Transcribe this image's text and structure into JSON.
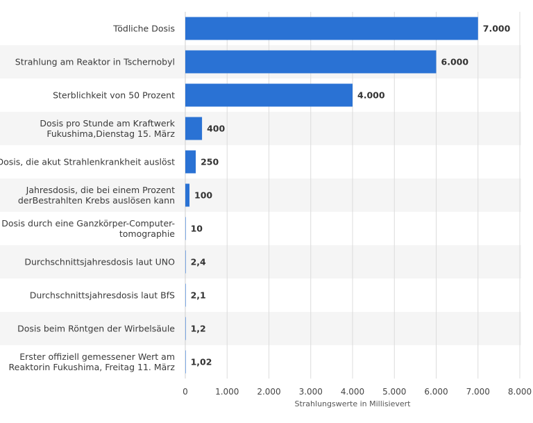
{
  "chart_data": {
    "type": "bar",
    "orientation": "horizontal",
    "categories": [
      [
        "Tödliche Dosis"
      ],
      [
        "Strahlung am Reaktor in Tschernobyl"
      ],
      [
        "Sterblichkeit von 50 Prozent"
      ],
      [
        "Dosis pro Stunde am Kraftwerk",
        "Fukushima,Dienstag 15. März"
      ],
      [
        "Dosis, die akut Strahlenkrankheit auslöst"
      ],
      [
        "Jahresdosis, die bei einem Prozent",
        "derBestrahlten Krebs auslösen kann"
      ],
      [
        "Dosis durch eine Ganzkörper-Computer-",
        "tomographie"
      ],
      [
        "Durchschnittsjahresdosis laut UNO"
      ],
      [
        "Durchschnittsjahresdosis laut BfS"
      ],
      [
        "Dosis beim Röntgen der Wirbelsäule"
      ],
      [
        "Erster offiziell gemessener Wert am",
        "Reaktorin Fukushima, Freitag 11. März"
      ]
    ],
    "values": [
      7000,
      6000,
      4000,
      400,
      250,
      100,
      10,
      2.4,
      2.1,
      1.2,
      1.02
    ],
    "value_labels": [
      "7.000",
      "6.000",
      "4.000",
      "400",
      "250",
      "100",
      "10",
      "2,4",
      "2,1",
      "1,2",
      "1,02"
    ],
    "xlabel": "Strahlungswerte in Millisievert",
    "xlim": [
      0,
      8000
    ],
    "x_ticks": [
      0,
      1000,
      2000,
      3000,
      4000,
      5000,
      6000,
      7000,
      8000
    ],
    "x_tick_labels": [
      "0",
      "1.000",
      "2.000",
      "3.000",
      "4.000",
      "5.000",
      "6.000",
      "7.000",
      "8.000"
    ],
    "grid": true,
    "bar_color": "#2a72d4",
    "stripe_color": "#f5f5f5",
    "grid_color": "#dcdcdc"
  }
}
